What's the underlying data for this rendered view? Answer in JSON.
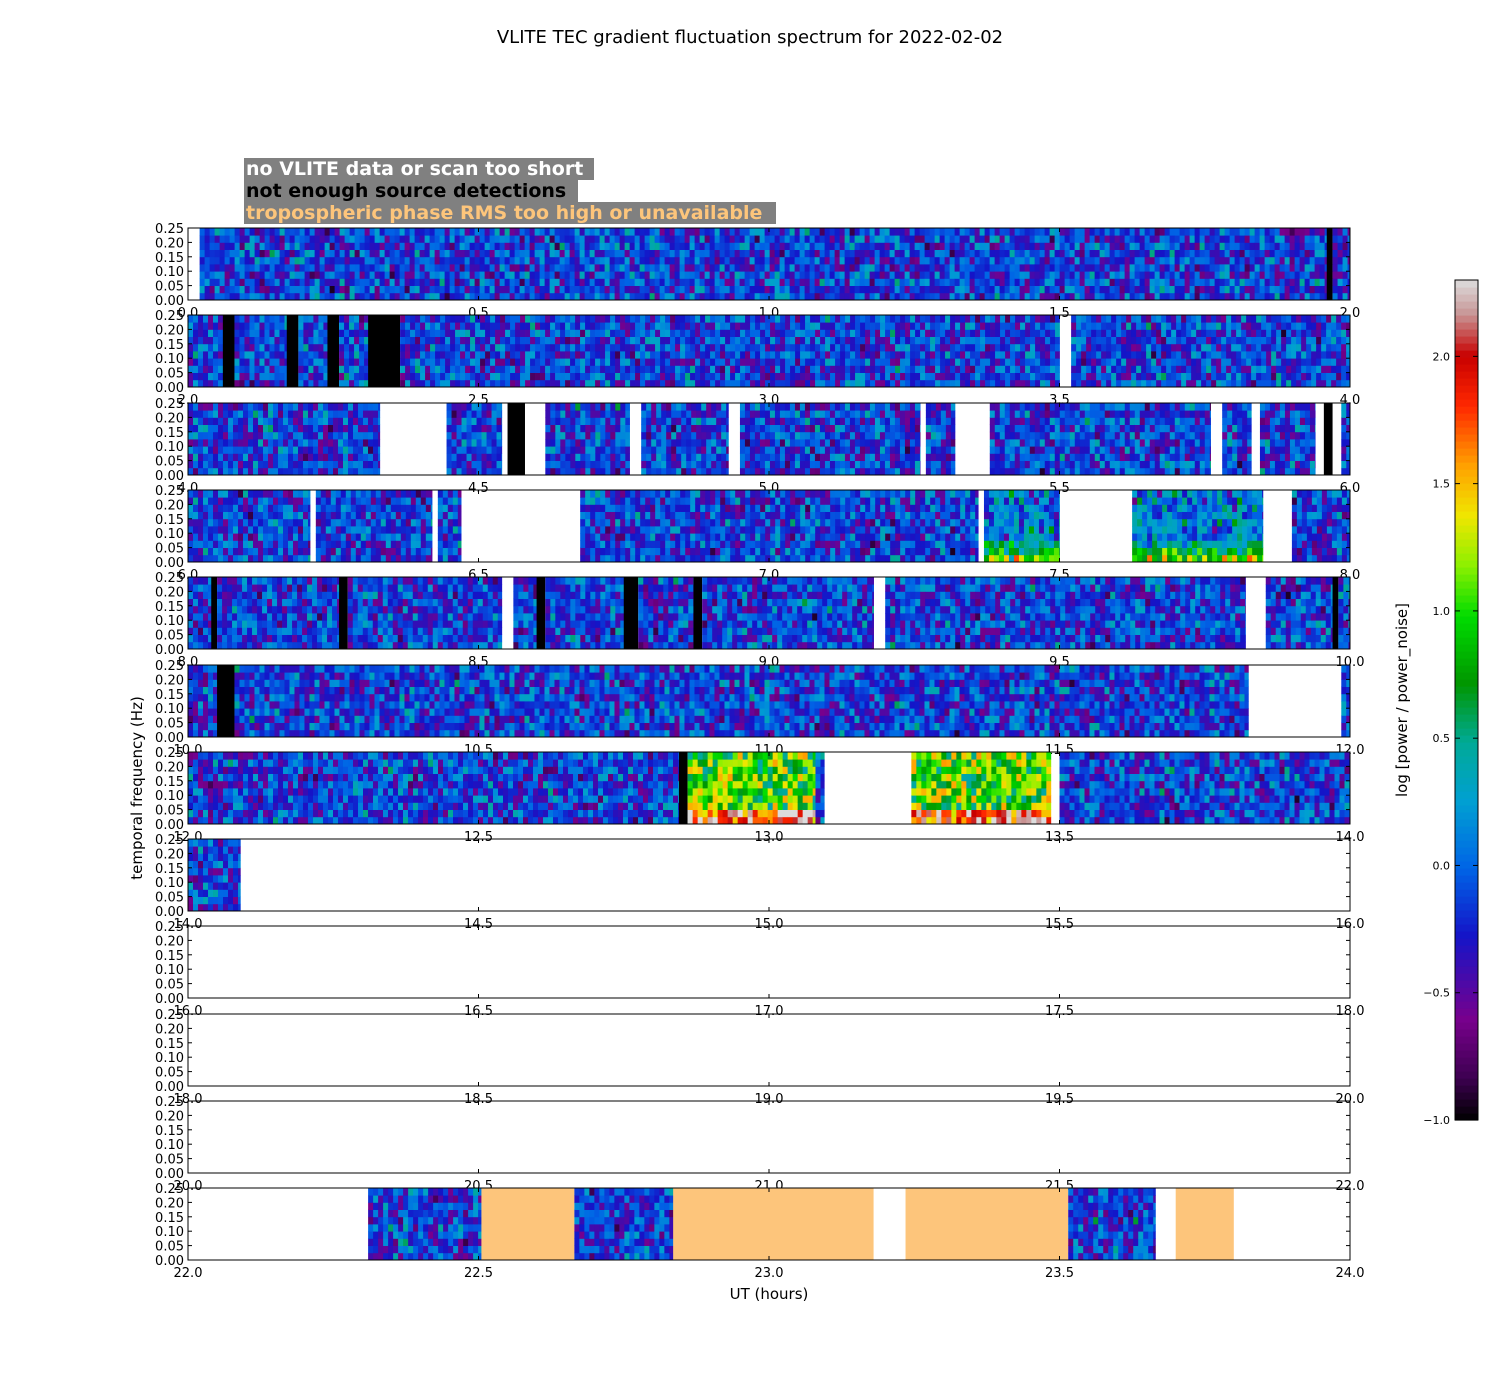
{
  "title": "VLITE TEC gradient fluctuation spectrum for 2022-02-02",
  "legend": {
    "items": [
      {
        "label": "no VLITE data or scan too short",
        "text_color": "#ffffff"
      },
      {
        "label": "not enough source detections",
        "text_color": "#000000"
      },
      {
        "label": "tropospheric phase RMS too high or unavailable",
        "text_color": "#fdc57b"
      }
    ],
    "background": "#808080"
  },
  "colors": {
    "no_data": "#ffffff",
    "not_enough_sources": "#000000",
    "tropo_bad": "#fdc57b"
  },
  "chart_data": {
    "type": "heatmap",
    "title": "VLITE TEC gradient fluctuation spectrum for 2022-02-02",
    "xlabel": "UT (hours)",
    "ylabel": "temporal frequency (Hz)",
    "ylim": [
      0,
      0.25
    ],
    "yticks": [
      "0.00",
      "0.05",
      "0.10",
      "0.15",
      "0.20",
      "0.25"
    ],
    "colorbar": {
      "label": "log [power / power_noise]",
      "range": [
        -1.0,
        2.3
      ],
      "ticks": [
        "−1.0",
        "−0.5",
        "0.0",
        "0.5",
        "1.0",
        "1.5",
        "2.0"
      ],
      "tick_values": [
        -1.0,
        -0.5,
        0.0,
        0.5,
        1.0,
        1.5,
        2.0
      ]
    },
    "panels": [
      {
        "xlim": [
          0,
          2
        ],
        "xticks": [
          "0.0",
          "0.5",
          "1.0",
          "1.5",
          "2.0"
        ],
        "segments": [
          [
            0.0,
            0.02,
            "none"
          ],
          [
            0.02,
            1.96,
            "data"
          ],
          [
            1.96,
            1.97,
            "black"
          ],
          [
            1.97,
            2.0,
            "data"
          ]
        ]
      },
      {
        "xlim": [
          2,
          4
        ],
        "xticks": [
          "2.0",
          "2.5",
          "3.0",
          "3.5",
          "4.0"
        ],
        "segments": [
          [
            2.0,
            2.06,
            "data"
          ],
          [
            2.06,
            2.08,
            "black"
          ],
          [
            2.08,
            2.17,
            "data"
          ],
          [
            2.17,
            2.19,
            "black"
          ],
          [
            2.19,
            2.24,
            "data"
          ],
          [
            2.24,
            2.26,
            "black"
          ],
          [
            2.26,
            2.31,
            "data"
          ],
          [
            2.31,
            2.365,
            "black"
          ],
          [
            2.365,
            3.5,
            "data"
          ],
          [
            3.5,
            3.52,
            "none"
          ],
          [
            3.52,
            4.0,
            "data"
          ]
        ]
      },
      {
        "xlim": [
          4,
          6
        ],
        "xticks": [
          "4.0",
          "4.5",
          "5.0",
          "5.5",
          "6.0"
        ],
        "segments": [
          [
            4.0,
            4.33,
            "data"
          ],
          [
            4.33,
            4.445,
            "none"
          ],
          [
            4.445,
            4.54,
            "data"
          ],
          [
            4.54,
            4.55,
            "none"
          ],
          [
            4.55,
            4.58,
            "black"
          ],
          [
            4.58,
            4.615,
            "none"
          ],
          [
            4.615,
            4.76,
            "data"
          ],
          [
            4.76,
            4.78,
            "none"
          ],
          [
            4.78,
            4.93,
            "data"
          ],
          [
            4.93,
            4.95,
            "none"
          ],
          [
            4.95,
            5.26,
            "data"
          ],
          [
            5.26,
            5.27,
            "none"
          ],
          [
            5.27,
            5.32,
            "data"
          ],
          [
            5.32,
            5.38,
            "none"
          ],
          [
            5.38,
            5.76,
            "data"
          ],
          [
            5.76,
            5.78,
            "none"
          ],
          [
            5.78,
            5.83,
            "data"
          ],
          [
            5.83,
            5.845,
            "none"
          ],
          [
            5.845,
            5.94,
            "data"
          ],
          [
            5.94,
            5.955,
            "none"
          ],
          [
            5.955,
            5.97,
            "black"
          ],
          [
            5.97,
            5.985,
            "none"
          ],
          [
            5.985,
            6.0,
            "data"
          ]
        ]
      },
      {
        "xlim": [
          6,
          8
        ],
        "xticks": [
          "6.0",
          "6.5",
          "7.0",
          "7.5",
          "8.0"
        ],
        "segments": [
          [
            6.0,
            6.21,
            "data"
          ],
          [
            6.21,
            6.22,
            "none"
          ],
          [
            6.22,
            6.42,
            "data"
          ],
          [
            6.42,
            6.43,
            "none"
          ],
          [
            6.43,
            6.47,
            "data"
          ],
          [
            6.47,
            6.675,
            "none"
          ],
          [
            6.675,
            7.36,
            "data"
          ],
          [
            7.36,
            7.37,
            "none"
          ],
          [
            7.37,
            7.5,
            "hot"
          ],
          [
            7.5,
            7.625,
            "none"
          ],
          [
            7.625,
            7.85,
            "hot"
          ],
          [
            7.85,
            7.9,
            "none"
          ],
          [
            7.9,
            8.0,
            "data"
          ]
        ]
      },
      {
        "xlim": [
          8,
          10
        ],
        "xticks": [
          "8.0",
          "8.5",
          "9.0",
          "9.5",
          "10.0"
        ],
        "segments": [
          [
            8.0,
            8.04,
            "data"
          ],
          [
            8.04,
            8.05,
            "black"
          ],
          [
            8.05,
            8.26,
            "data"
          ],
          [
            8.26,
            8.275,
            "black"
          ],
          [
            8.275,
            8.54,
            "data"
          ],
          [
            8.54,
            8.56,
            "none"
          ],
          [
            8.56,
            8.6,
            "data"
          ],
          [
            8.6,
            8.615,
            "black"
          ],
          [
            8.615,
            8.75,
            "data"
          ],
          [
            8.75,
            8.775,
            "black"
          ],
          [
            8.775,
            8.87,
            "data"
          ],
          [
            8.87,
            8.885,
            "black"
          ],
          [
            8.885,
            9.18,
            "data"
          ],
          [
            9.18,
            9.2,
            "none"
          ],
          [
            9.2,
            9.82,
            "data"
          ],
          [
            9.82,
            9.855,
            "none"
          ],
          [
            9.855,
            9.97,
            "data"
          ],
          [
            9.97,
            9.98,
            "black"
          ],
          [
            9.98,
            10.0,
            "data"
          ]
        ]
      },
      {
        "xlim": [
          10,
          12
        ],
        "xticks": [
          "10.0",
          "10.5",
          "11.0",
          "11.5",
          "12.0"
        ],
        "segments": [
          [
            10.0,
            10.05,
            "data"
          ],
          [
            10.05,
            10.08,
            "black"
          ],
          [
            10.08,
            11.825,
            "data"
          ],
          [
            11.825,
            11.985,
            "none"
          ],
          [
            11.985,
            12.0,
            "data"
          ]
        ]
      },
      {
        "xlim": [
          12,
          14
        ],
        "xticks": [
          "12.0",
          "12.5",
          "13.0",
          "13.5",
          "14.0"
        ],
        "segments": [
          [
            12.0,
            12.845,
            "data"
          ],
          [
            12.845,
            12.86,
            "black"
          ],
          [
            12.86,
            13.08,
            "storm"
          ],
          [
            13.08,
            13.095,
            "data"
          ],
          [
            13.095,
            13.245,
            "none"
          ],
          [
            13.245,
            13.485,
            "storm"
          ],
          [
            13.485,
            13.5,
            "none"
          ],
          [
            13.5,
            14.0,
            "data"
          ]
        ]
      },
      {
        "xlim": [
          14,
          16
        ],
        "xticks": [
          "14.0",
          "14.5",
          "15.0",
          "15.5",
          "16.0"
        ],
        "segments": [
          [
            14.0,
            14.09,
            "data"
          ],
          [
            14.09,
            16.0,
            "none"
          ]
        ]
      },
      {
        "xlim": [
          16,
          18
        ],
        "xticks": [
          "16.0",
          "16.5",
          "17.0",
          "17.5",
          "18.0"
        ],
        "segments": []
      },
      {
        "xlim": [
          18,
          20
        ],
        "xticks": [
          "18.0",
          "18.5",
          "19.0",
          "19.5",
          "20.0"
        ],
        "segments": []
      },
      {
        "xlim": [
          20,
          22
        ],
        "xticks": [
          "20.0",
          "20.5",
          "21.0",
          "21.5",
          "22.0"
        ],
        "segments": []
      },
      {
        "xlim": [
          22,
          24
        ],
        "xticks": [
          "22.0",
          "22.5",
          "23.0",
          "23.5",
          "24.0"
        ],
        "segments": [
          [
            22.0,
            22.31,
            "none"
          ],
          [
            22.31,
            22.505,
            "data"
          ],
          [
            22.505,
            22.665,
            "tropo"
          ],
          [
            22.665,
            22.835,
            "data"
          ],
          [
            22.835,
            23.18,
            "tropo"
          ],
          [
            23.18,
            23.235,
            "none"
          ],
          [
            23.235,
            23.515,
            "tropo"
          ],
          [
            23.515,
            23.665,
            "data"
          ],
          [
            23.665,
            23.7,
            "none"
          ],
          [
            23.7,
            23.8,
            "tropo"
          ],
          [
            23.8,
            24.0,
            "none"
          ]
        ]
      }
    ]
  }
}
